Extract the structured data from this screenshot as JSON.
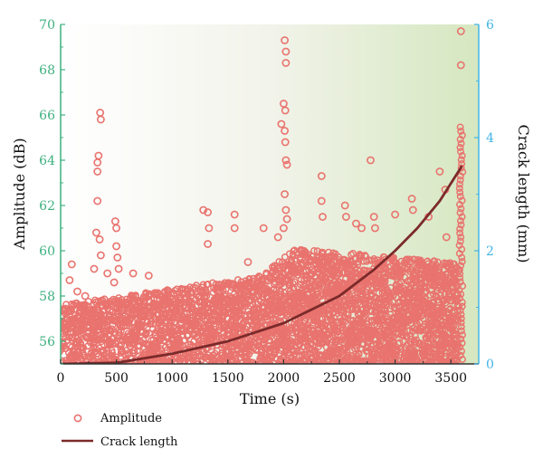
{
  "chart_data": {
    "type": "scatter",
    "xlabel": "Time (s)",
    "ylabel_left": "Amplitude (dB)",
    "ylabel_right": "Crack length (mm)",
    "xlim": [
      0,
      3750
    ],
    "ylim_left": [
      55,
      70
    ],
    "ylim_right": [
      0,
      6
    ],
    "x_ticks": [
      0,
      500,
      1000,
      1500,
      2000,
      2500,
      3000,
      3500
    ],
    "y_left_ticks": [
      56,
      58,
      60,
      62,
      64,
      66,
      68,
      70
    ],
    "y_right_ticks": [
      0,
      2,
      4,
      6
    ],
    "grid": false,
    "legend_position": "below",
    "colors": {
      "amplitude": "#e9736e",
      "crack_length": "#7b2a2a",
      "left_axis": "#3db07f",
      "right_axis": "#42b5e6",
      "background_left": "#ffffff",
      "background_right": "#d7e8c2"
    },
    "series": [
      {
        "name": "Amplitude",
        "marker": "hollow-circle",
        "axis": "left",
        "points": [
          [
            100,
            59.4
          ],
          [
            80,
            58.7
          ],
          [
            150,
            58.2
          ],
          [
            220,
            58.0
          ],
          [
            300,
            59.2
          ],
          [
            320,
            60.8
          ],
          [
            330,
            62.2
          ],
          [
            330,
            63.5
          ],
          [
            330,
            63.9
          ],
          [
            340,
            64.2
          ],
          [
            350,
            60.5
          ],
          [
            355,
            66.1
          ],
          [
            360,
            65.8
          ],
          [
            360,
            59.8
          ],
          [
            420,
            59.0
          ],
          [
            480,
            58.6
          ],
          [
            490,
            61.3
          ],
          [
            500,
            61.0
          ],
          [
            500,
            60.2
          ],
          [
            510,
            59.7
          ],
          [
            520,
            59.2
          ],
          [
            650,
            59.0
          ],
          [
            790,
            58.9
          ],
          [
            1280,
            61.8
          ],
          [
            1320,
            61.7
          ],
          [
            1330,
            61.0
          ],
          [
            1320,
            60.3
          ],
          [
            1560,
            61.6
          ],
          [
            1560,
            61.0
          ],
          [
            1680,
            59.5
          ],
          [
            1820,
            61.0
          ],
          [
            1950,
            60.6
          ],
          [
            1980,
            65.6
          ],
          [
            2000,
            66.5
          ],
          [
            2010,
            69.3
          ],
          [
            2020,
            68.8
          ],
          [
            2020,
            68.3
          ],
          [
            2015,
            66.2
          ],
          [
            2010,
            65.3
          ],
          [
            2015,
            64.8
          ],
          [
            2020,
            64.0
          ],
          [
            2030,
            63.8
          ],
          [
            2010,
            62.5
          ],
          [
            2020,
            61.8
          ],
          [
            2030,
            61.4
          ],
          [
            2000,
            61.0
          ],
          [
            2340,
            63.3
          ],
          [
            2340,
            62.2
          ],
          [
            2350,
            61.5
          ],
          [
            2550,
            62.0
          ],
          [
            2560,
            61.5
          ],
          [
            2650,
            61.2
          ],
          [
            2700,
            61.0
          ],
          [
            2780,
            64.0
          ],
          [
            2810,
            61.5
          ],
          [
            2820,
            61.0
          ],
          [
            3000,
            61.6
          ],
          [
            3150,
            62.3
          ],
          [
            3160,
            61.8
          ],
          [
            3300,
            61.5
          ],
          [
            3400,
            63.5
          ],
          [
            3450,
            62.7
          ],
          [
            3460,
            60.6
          ]
        ]
      },
      {
        "name": "Crack length",
        "type": "line",
        "axis": "right",
        "x": [
          0,
          500,
          1000,
          1500,
          2000,
          2500,
          2800,
          3000,
          3200,
          3400,
          3600
        ],
        "y": [
          0,
          0.02,
          0.18,
          0.4,
          0.72,
          1.2,
          1.65,
          2.0,
          2.4,
          2.88,
          3.5
        ]
      }
    ]
  },
  "legend": {
    "amplitude_label": "Amplitude",
    "crack_label": "Crack length"
  }
}
